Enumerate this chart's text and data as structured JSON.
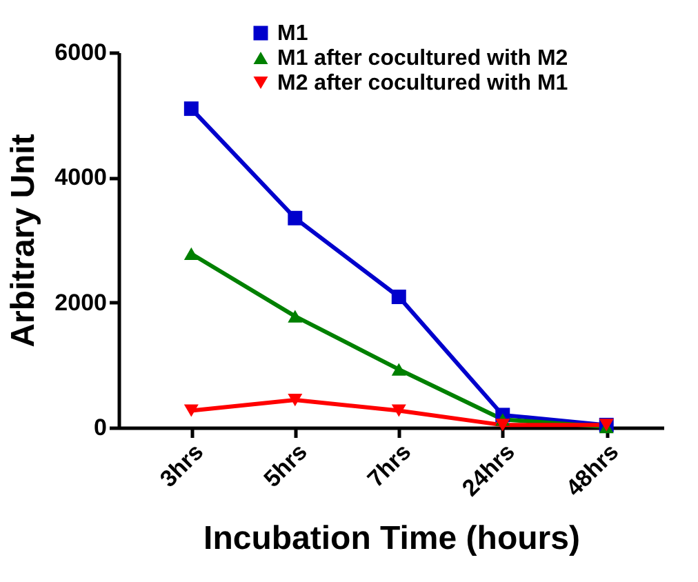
{
  "chart_data": {
    "type": "line",
    "xlabel": "Incubation Time (hours)",
    "ylabel": "Arbitrary Unit",
    "categories": [
      "3hrs",
      "5hrs",
      "7hrs",
      "24hrs",
      "48hrs"
    ],
    "series": [
      {
        "name": "M1",
        "color": "#0000cc",
        "marker": "square",
        "values": [
          5100,
          3350,
          2090,
          200,
          40
        ]
      },
      {
        "name": "M1 after cocultured with M2",
        "color": "#008000",
        "marker": "triangle",
        "values": [
          2780,
          1780,
          930,
          130,
          10
        ]
      },
      {
        "name": "M2 after cocultured with M1",
        "color": "#ff0000",
        "marker": "triangle-down",
        "values": [
          270,
          440,
          270,
          40,
          40
        ]
      }
    ],
    "ylim": [
      0,
      6000
    ],
    "yticks": [
      0,
      2000,
      4000,
      6000
    ],
    "grid": false,
    "legend": "top right"
  }
}
